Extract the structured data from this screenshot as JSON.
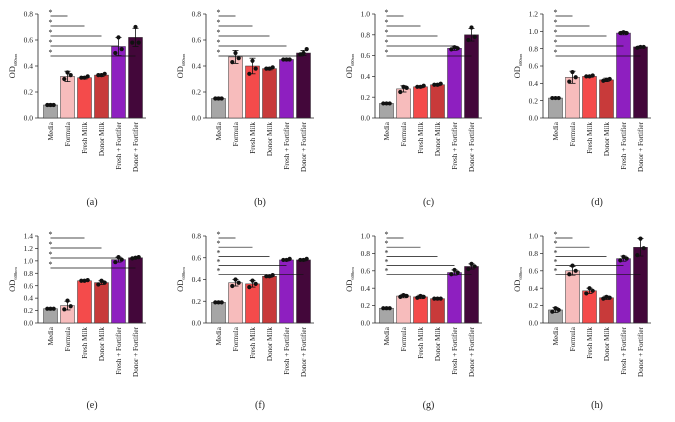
{
  "figure": {
    "categories": [
      "Media",
      "Formula",
      "Fresh Milk",
      "Donor Milk",
      "Fresh + Fortifier",
      "Donor + Fortifier"
    ],
    "colors": {
      "Media": "#a6a6a6",
      "Formula": "#f7bcbc",
      "Fresh Milk": "#f44b4b",
      "Donor Milk": "#c83a3a",
      "Fresh + Fortifier": "#8e1fc0",
      "Donor + Fortifier": "#43073a"
    },
    "significance_marker": "*"
  },
  "chart_data": [
    {
      "type": "bar",
      "panel": "(a)",
      "ylabel": "OD",
      "ylabel_subscript": "600nm",
      "ylim": [
        0,
        0.8
      ],
      "yticks": [
        "0.0",
        "0.2",
        "0.4",
        "0.6",
        "0.8"
      ],
      "ytick_values": [
        0,
        0.2,
        0.4,
        0.6,
        0.8
      ],
      "categories": [
        "Media",
        "Formula",
        "Fresh Milk",
        "Donor Milk",
        "Fresh + Fortifier",
        "Donor + Fortifier"
      ],
      "values": [
        0.1,
        0.32,
        0.31,
        0.33,
        0.55,
        0.62
      ],
      "errors": [
        0.01,
        0.04,
        0.01,
        0.01,
        0.07,
        0.07
      ],
      "points": [
        [
          0.1,
          0.1,
          0.1
        ],
        [
          0.3,
          0.35,
          0.33
        ],
        [
          0.31,
          0.31,
          0.32
        ],
        [
          0.33,
          0.33,
          0.34
        ],
        [
          0.5,
          0.62,
          0.53
        ],
        [
          0.58,
          0.7,
          0.58
        ]
      ],
      "significance": [
        {
          "from": 0,
          "to": 1
        },
        {
          "from": 0,
          "to": 2
        },
        {
          "from": 0,
          "to": 3
        },
        {
          "from": 0,
          "to": 4
        },
        {
          "from": 0,
          "to": 5
        }
      ]
    },
    {
      "type": "bar",
      "panel": "(b)",
      "ylabel": "OD",
      "ylabel_subscript": "600nm",
      "ylim": [
        0,
        0.8
      ],
      "yticks": [
        "0.0",
        "0.2",
        "0.4",
        "0.6",
        "0.8"
      ],
      "ytick_values": [
        0,
        0.2,
        0.4,
        0.6,
        0.8
      ],
      "categories": [
        "Media",
        "Formula",
        "Fresh Milk",
        "Donor Milk",
        "Fresh + Fortifier",
        "Donor + Fortifier"
      ],
      "values": [
        0.15,
        0.47,
        0.4,
        0.38,
        0.45,
        0.5
      ],
      "errors": [
        0.01,
        0.05,
        0.06,
        0.01,
        0.01,
        0.02
      ],
      "points": [
        [
          0.15,
          0.15,
          0.15
        ],
        [
          0.43,
          0.5,
          0.46
        ],
        [
          0.34,
          0.44,
          0.38
        ],
        [
          0.38,
          0.38,
          0.39
        ],
        [
          0.45,
          0.45,
          0.45
        ],
        [
          0.49,
          0.5,
          0.53
        ]
      ],
      "significance": [
        {
          "from": 0,
          "to": 1
        },
        {
          "from": 0,
          "to": 2
        },
        {
          "from": 0,
          "to": 3
        },
        {
          "from": 0,
          "to": 4
        },
        {
          "from": 0,
          "to": 5
        }
      ]
    },
    {
      "type": "bar",
      "panel": "(c)",
      "ylabel": "OD",
      "ylabel_subscript": "600nm",
      "ylim": [
        0,
        1.0
      ],
      "yticks": [
        "0.0",
        "0.2",
        "0.4",
        "0.6",
        "0.8",
        "1.0"
      ],
      "ytick_values": [
        0,
        0.2,
        0.4,
        0.6,
        0.8,
        1.0
      ],
      "categories": [
        "Media",
        "Formula",
        "Fresh Milk",
        "Donor Milk",
        "Fresh + Fortifier",
        "Donor + Fortifier"
      ],
      "values": [
        0.14,
        0.28,
        0.3,
        0.32,
        0.67,
        0.8
      ],
      "errors": [
        0.01,
        0.03,
        0.01,
        0.01,
        0.02,
        0.06
      ],
      "points": [
        [
          0.14,
          0.14,
          0.14
        ],
        [
          0.25,
          0.3,
          0.29
        ],
        [
          0.3,
          0.3,
          0.31
        ],
        [
          0.32,
          0.32,
          0.33
        ],
        [
          0.66,
          0.68,
          0.67
        ],
        [
          0.75,
          0.87,
          0.78
        ]
      ],
      "significance": [
        {
          "from": 0,
          "to": 1
        },
        {
          "from": 0,
          "to": 2
        },
        {
          "from": 0,
          "to": 3
        },
        {
          "from": 0,
          "to": 4
        },
        {
          "from": 0,
          "to": 5
        }
      ]
    },
    {
      "type": "bar",
      "panel": "(d)",
      "ylabel": "OD",
      "ylabel_subscript": "600nm",
      "ylim": [
        0,
        1.2
      ],
      "yticks": [
        "0.0",
        "0.2",
        "0.4",
        "0.6",
        "0.8",
        "1.0",
        "1.2"
      ],
      "ytick_values": [
        0,
        0.2,
        0.4,
        0.6,
        0.8,
        1.0,
        1.2
      ],
      "categories": [
        "Media",
        "Formula",
        "Fresh Milk",
        "Donor Milk",
        "Fresh + Fortifier",
        "Donor + Fortifier"
      ],
      "values": [
        0.23,
        0.47,
        0.48,
        0.44,
        0.98,
        0.82
      ],
      "errors": [
        0.01,
        0.07,
        0.01,
        0.02,
        0.02,
        0.01
      ],
      "points": [
        [
          0.23,
          0.23,
          0.23
        ],
        [
          0.42,
          0.53,
          0.47
        ],
        [
          0.48,
          0.48,
          0.49
        ],
        [
          0.43,
          0.44,
          0.45
        ],
        [
          0.98,
          0.99,
          0.98
        ],
        [
          0.81,
          0.82,
          0.82
        ]
      ],
      "significance": [
        {
          "from": 0,
          "to": 1
        },
        {
          "from": 0,
          "to": 2
        },
        {
          "from": 0,
          "to": 3
        },
        {
          "from": 0,
          "to": 4
        },
        {
          "from": 0,
          "to": 5
        }
      ]
    },
    {
      "type": "bar",
      "panel": "(e)",
      "ylabel": "OD",
      "ylabel_subscript": "600nm",
      "ylim": [
        0,
        1.4
      ],
      "yticks": [
        "0.0",
        "0.2",
        "0.4",
        "0.6",
        "0.8",
        "1.0",
        "1.2",
        "1.4"
      ],
      "ytick_values": [
        0,
        0.2,
        0.4,
        0.6,
        0.8,
        1.0,
        1.2,
        1.4
      ],
      "categories": [
        "Media",
        "Formula",
        "Fresh Milk",
        "Donor Milk",
        "Fresh + Fortifier",
        "Donor + Fortifier"
      ],
      "values": [
        0.23,
        0.28,
        0.68,
        0.65,
        1.02,
        1.05
      ],
      "errors": [
        0.01,
        0.07,
        0.01,
        0.03,
        0.04,
        0.01
      ],
      "points": [
        [
          0.23,
          0.23,
          0.23
        ],
        [
          0.22,
          0.36,
          0.27
        ],
        [
          0.68,
          0.68,
          0.69
        ],
        [
          0.62,
          0.68,
          0.65
        ],
        [
          0.98,
          1.06,
          1.02
        ],
        [
          1.04,
          1.05,
          1.06
        ]
      ],
      "significance": [
        {
          "from": 0,
          "to": 2
        },
        {
          "from": 0,
          "to": 3
        },
        {
          "from": 0,
          "to": 4
        },
        {
          "from": 0,
          "to": 5
        }
      ]
    },
    {
      "type": "bar",
      "panel": "(f)",
      "ylabel": "OD",
      "ylabel_subscript": "600nm",
      "ylim": [
        0,
        0.8
      ],
      "yticks": [
        "0.0",
        "0.2",
        "0.4",
        "0.6",
        "0.8"
      ],
      "ytick_values": [
        0,
        0.2,
        0.4,
        0.6,
        0.8
      ],
      "categories": [
        "Media",
        "Formula",
        "Fresh Milk",
        "Donor Milk",
        "Fresh + Fortifier",
        "Donor + Fortifier"
      ],
      "values": [
        0.19,
        0.37,
        0.36,
        0.43,
        0.58,
        0.58
      ],
      "errors": [
        0.01,
        0.03,
        0.03,
        0.01,
        0.01,
        0.01
      ],
      "points": [
        [
          0.19,
          0.19,
          0.19
        ],
        [
          0.34,
          0.4,
          0.37
        ],
        [
          0.33,
          0.39,
          0.36
        ],
        [
          0.43,
          0.43,
          0.44
        ],
        [
          0.58,
          0.58,
          0.59
        ],
        [
          0.58,
          0.58,
          0.59
        ]
      ],
      "significance": [
        {
          "from": 0,
          "to": 1
        },
        {
          "from": 0,
          "to": 2
        },
        {
          "from": 0,
          "to": 3
        },
        {
          "from": 0,
          "to": 4
        },
        {
          "from": 0,
          "to": 5
        }
      ]
    },
    {
      "type": "bar",
      "panel": "(g)",
      "ylabel": "OD",
      "ylabel_subscript": "600nm",
      "ylim": [
        0,
        1.0
      ],
      "yticks": [
        "0.0",
        "0.2",
        "0.4",
        "0.6",
        "0.8",
        "1.0"
      ],
      "ytick_values": [
        0,
        0.2,
        0.4,
        0.6,
        0.8,
        1.0
      ],
      "categories": [
        "Media",
        "Formula",
        "Fresh Milk",
        "Donor Milk",
        "Fresh + Fortifier",
        "Donor + Fortifier"
      ],
      "values": [
        0.17,
        0.31,
        0.3,
        0.28,
        0.58,
        0.65
      ],
      "errors": [
        0.01,
        0.02,
        0.02,
        0.01,
        0.03,
        0.03
      ],
      "points": [
        [
          0.17,
          0.17,
          0.17
        ],
        [
          0.3,
          0.32,
          0.31
        ],
        [
          0.29,
          0.31,
          0.3
        ],
        [
          0.28,
          0.28,
          0.28
        ],
        [
          0.56,
          0.61,
          0.58
        ],
        [
          0.62,
          0.68,
          0.65
        ]
      ],
      "significance": [
        {
          "from": 0,
          "to": 1
        },
        {
          "from": 0,
          "to": 2
        },
        {
          "from": 0,
          "to": 3
        },
        {
          "from": 0,
          "to": 4
        },
        {
          "from": 0,
          "to": 5
        }
      ]
    },
    {
      "type": "bar",
      "panel": "(h)",
      "ylabel": "OD",
      "ylabel_subscript": "600nm",
      "ylim": [
        0,
        1.0
      ],
      "yticks": [
        "0.0",
        "0.2",
        "0.4",
        "0.6",
        "0.8",
        "1.0"
      ],
      "ytick_values": [
        0,
        0.2,
        0.4,
        0.6,
        0.8,
        1.0
      ],
      "categories": [
        "Media",
        "Formula",
        "Fresh Milk",
        "Donor Milk",
        "Fresh + Fortifier",
        "Donor + Fortifier"
      ],
      "values": [
        0.15,
        0.6,
        0.37,
        0.29,
        0.74,
        0.87
      ],
      "errors": [
        0.03,
        0.05,
        0.03,
        0.02,
        0.03,
        0.1
      ],
      "points": [
        [
          0.13,
          0.17,
          0.15
        ],
        [
          0.56,
          0.66,
          0.6
        ],
        [
          0.34,
          0.4,
          0.37
        ],
        [
          0.28,
          0.3,
          0.29
        ],
        [
          0.72,
          0.76,
          0.74
        ],
        [
          0.78,
          0.97,
          0.86
        ]
      ],
      "significance": [
        {
          "from": 0,
          "to": 1
        },
        {
          "from": 0,
          "to": 2
        },
        {
          "from": 0,
          "to": 3
        },
        {
          "from": 0,
          "to": 4
        },
        {
          "from": 0,
          "to": 5
        }
      ]
    }
  ]
}
